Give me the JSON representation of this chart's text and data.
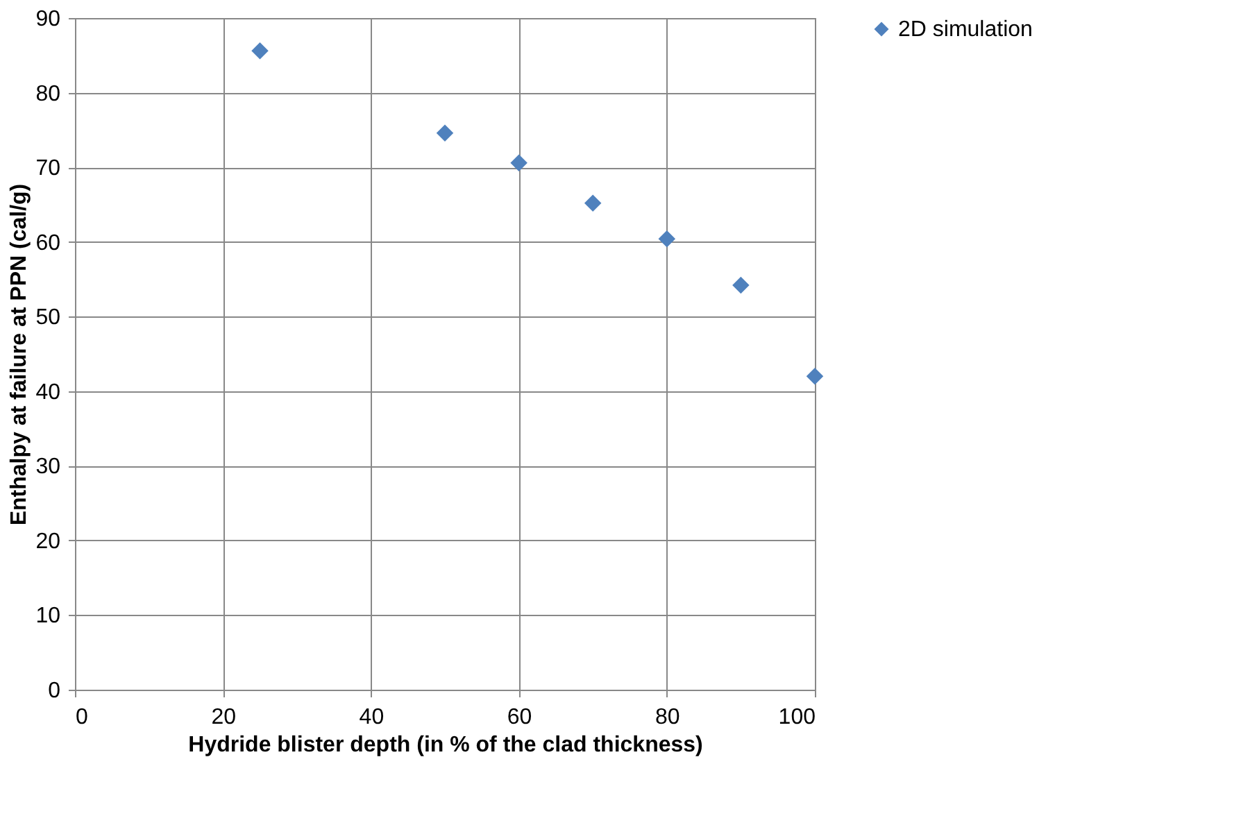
{
  "chart_data": {
    "type": "scatter",
    "xlabel": "Hydride blister depth (in % of the clad thickness)",
    "ylabel": "Enthalpy at failure at PPN (cal/g)",
    "x": [
      25,
      50,
      60,
      70,
      80,
      90,
      100
    ],
    "series": [
      {
        "name": "2D simulation",
        "color": "#4f81bd",
        "values": [
          85.6,
          74.6,
          70.6,
          65.2,
          60.4,
          54.2,
          42.0
        ]
      }
    ],
    "xlim": [
      0,
      100
    ],
    "xticks": [
      0,
      20,
      40,
      60,
      80,
      100
    ],
    "ylim": [
      0,
      90
    ],
    "yticks": [
      0,
      10,
      20,
      30,
      40,
      50,
      60,
      70,
      80,
      90
    ],
    "grid": true,
    "legend": "right",
    "marker": "diamond"
  }
}
